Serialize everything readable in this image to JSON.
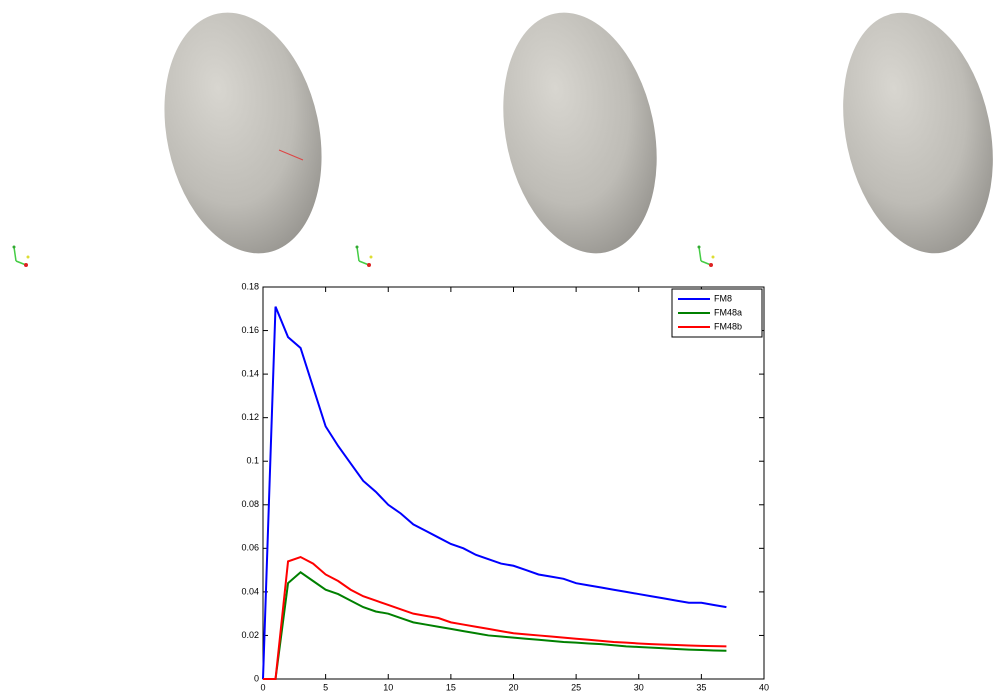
{
  "chart_data": {
    "type": "line",
    "x": [
      0,
      1,
      2,
      3,
      4,
      5,
      6,
      7,
      8,
      9,
      10,
      11,
      12,
      13,
      14,
      15,
      16,
      17,
      18,
      19,
      20,
      21,
      22,
      23,
      24,
      25,
      26,
      27,
      28,
      29,
      30,
      31,
      32,
      33,
      34,
      35,
      36,
      37
    ],
    "series": [
      {
        "name": "FM8",
        "color": "#0000ff",
        "values": [
          0,
          0.171,
          0.157,
          0.152,
          0.134,
          0.116,
          0.107,
          0.099,
          0.091,
          0.086,
          0.08,
          0.076,
          0.071,
          0.068,
          0.065,
          0.062,
          0.06,
          0.057,
          0.055,
          0.053,
          0.052,
          0.05,
          0.048,
          0.047,
          0.046,
          0.044,
          0.043,
          0.042,
          0.041,
          0.04,
          0.039,
          0.038,
          0.037,
          0.036,
          0.035,
          0.035,
          0.034,
          0.033
        ]
      },
      {
        "name": "FM48a",
        "color": "#008000",
        "values": [
          0,
          0,
          0.044,
          0.049,
          0.045,
          0.041,
          0.039,
          0.036,
          0.033,
          0.031,
          0.03,
          0.028,
          0.026,
          0.025,
          0.024,
          0.023,
          0.022,
          0.021,
          0.02,
          0.0195,
          0.019,
          0.0185,
          0.018,
          0.0175,
          0.017,
          0.0167,
          0.0163,
          0.016,
          0.0155,
          0.015,
          0.0147,
          0.0144,
          0.0141,
          0.0138,
          0.0135,
          0.0133,
          0.0131,
          0.013
        ]
      },
      {
        "name": "FM48b",
        "color": "#ff0000",
        "values": [
          0,
          0,
          0.054,
          0.056,
          0.053,
          0.048,
          0.045,
          0.041,
          0.038,
          0.036,
          0.034,
          0.032,
          0.03,
          0.029,
          0.028,
          0.026,
          0.025,
          0.024,
          0.023,
          0.022,
          0.021,
          0.0205,
          0.02,
          0.0195,
          0.019,
          0.0185,
          0.018,
          0.0175,
          0.017,
          0.0167,
          0.0163,
          0.016,
          0.0158,
          0.0156,
          0.0154,
          0.0152,
          0.0151,
          0.015
        ]
      }
    ],
    "xlim": [
      0,
      40
    ],
    "xticks": [
      0,
      5,
      10,
      15,
      20,
      25,
      30,
      35,
      40
    ],
    "ylim": [
      0,
      0.18
    ],
    "yticks": [
      0,
      0.02,
      0.04,
      0.06,
      0.08,
      0.1,
      0.12,
      0.14,
      0.16,
      0.18
    ],
    "grid": false,
    "legend": "upper right"
  }
}
